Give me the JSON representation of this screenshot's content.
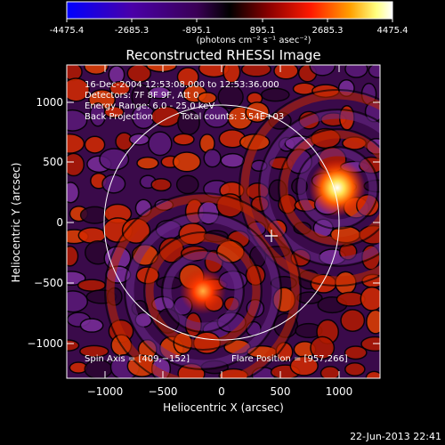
{
  "colorbar": {
    "ticks": [
      "-4475.4",
      "-2685.3",
      "-895.1",
      "895.1",
      "2685.3",
      "4475.4"
    ],
    "unit_label": "(photons cm⁻² s⁻¹ asec⁻²)",
    "colors": [
      "#0000ff",
      "#4a00a8",
      "#3a0055",
      "#000000",
      "#8a0000",
      "#ff1a00",
      "#ffa000",
      "#ffff80",
      "#ffffff"
    ]
  },
  "plot": {
    "title": "Reconstructed RHESSI Image",
    "xlabel": "Heliocentric X (arcsec)",
    "ylabel": "Heliocentric Y (arcsec)",
    "x_ticks": [
      "−1000",
      "−500",
      "0",
      "500",
      "1000"
    ],
    "y_ticks": [
      "1000",
      "500",
      "0",
      "−500",
      "−1000"
    ],
    "info_lines": [
      "16-Dec-2004 12:53:08.000 to 12:53:36.000",
      "Detectors: 7F 8F 9F, Att 0",
      "Energy Range: 6.0 - 25.0 keV"
    ],
    "info_method": "Back Projection",
    "info_counts": "Total counts: 3.54E+03",
    "spin_axis": "Spin Axis = [409,−152]",
    "flare_position": "Flare Position = [957,266]"
  },
  "timestamp": "22-Jun-2013 22:41"
}
